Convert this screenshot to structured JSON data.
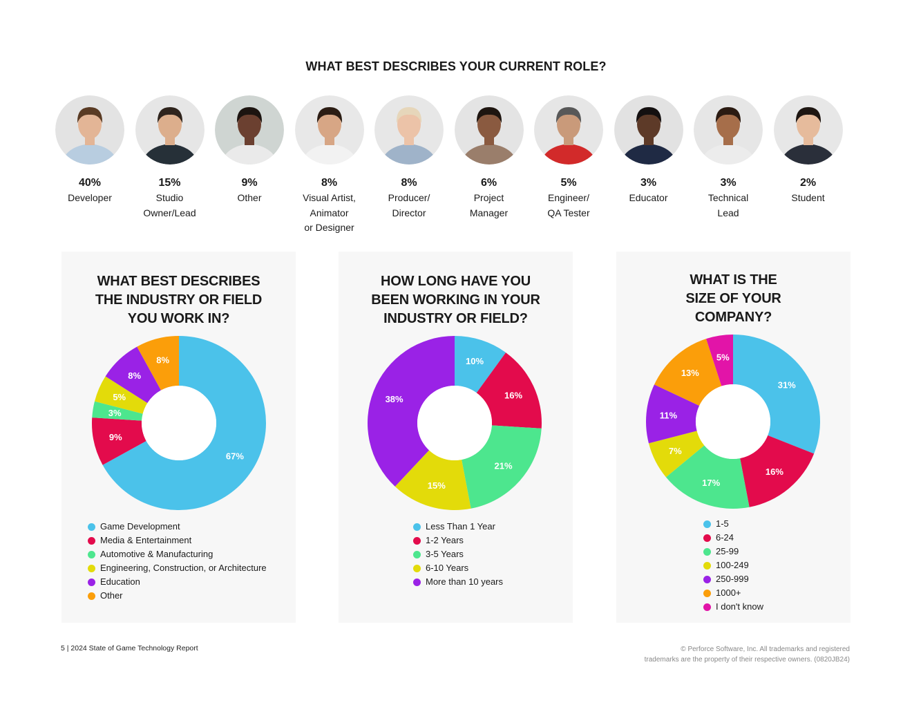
{
  "roles_section": {
    "title": "WHAT BEST DESCRIBES YOUR CURRENT ROLE?",
    "roles": [
      {
        "pct": "40%",
        "label": "Developer",
        "bg": "#e3e3e3",
        "skin": "#e3b596",
        "hair": "#5a3b24",
        "shirt": "#b8cde0"
      },
      {
        "pct": "15%",
        "label": "Studio\nOwner/Lead",
        "bg": "#e6e6e6",
        "skin": "#dcae8c",
        "hair": "#2f241d",
        "shirt": "#263038"
      },
      {
        "pct": "9%",
        "label": "Other",
        "bg": "#cfd5d2",
        "skin": "#6b4030",
        "hair": "#1c1410",
        "shirt": "#eaeaea"
      },
      {
        "pct": "8%",
        "label": "Visual Artist,\nAnimator\nor Designer",
        "bg": "#e8e8e8",
        "skin": "#d7a685",
        "hair": "#2c1d14",
        "shirt": "#f2f2f2"
      },
      {
        "pct": "8%",
        "label": "Producer/\nDirector",
        "bg": "#e7e7e7",
        "skin": "#ecc3a8",
        "hair": "#e6d6ba",
        "shirt": "#9fb3c9"
      },
      {
        "pct": "6%",
        "label": "Project\nManager",
        "bg": "#e4e4e4",
        "skin": "#8a5a40",
        "hair": "#1e1510",
        "shirt": "#9a7e6b"
      },
      {
        "pct": "5%",
        "label": "Engineer/\nQA Tester",
        "bg": "#e6e6e6",
        "skin": "#c99a7a",
        "hair": "#585858",
        "shirt": "#d22a2a"
      },
      {
        "pct": "3%",
        "label": "Educator",
        "bg": "#e2e2e2",
        "skin": "#5d3a28",
        "hair": "#141010",
        "shirt": "#1f2a44"
      },
      {
        "pct": "3%",
        "label": "Technical\nLead",
        "bg": "#e6e6e6",
        "skin": "#a66e4a",
        "hair": "#2b1b12",
        "shirt": "#ececec"
      },
      {
        "pct": "2%",
        "label": "Student",
        "bg": "#e7e7e7",
        "skin": "#e6bb9c",
        "hair": "#1e1612",
        "shirt": "#2a2f3a"
      }
    ]
  },
  "chart_data": [
    {
      "type": "pie",
      "title": "WHAT BEST DESCRIBES\nTHE INDUSTRY OR FIELD\nYOU WORK IN?",
      "categories": [
        "Game Development",
        "Media & Entertainment",
        "Automotive & Manufacturing",
        "Engineering, Construction, or Architecture",
        "Education",
        "Other"
      ],
      "values": [
        67,
        9,
        3,
        5,
        8,
        8
      ],
      "labels": [
        "67%",
        "9%",
        "3%",
        "5%",
        "8%",
        "8%"
      ],
      "colors": [
        "#4bc2ea",
        "#e30b4c",
        "#4de68e",
        "#e3db0a",
        "#9a22e6",
        "#fb9e0a"
      ],
      "legend_placement": "bottom"
    },
    {
      "type": "pie",
      "title": "HOW LONG HAVE YOU\nBEEN WORKING IN YOUR\nINDUSTRY OR FIELD?",
      "categories": [
        "Less Than 1 Year",
        "1-2 Years",
        "3-5 Years",
        "6-10 Years",
        "More than 10 years"
      ],
      "values": [
        10,
        16,
        21,
        15,
        38
      ],
      "labels": [
        "10%",
        "16%",
        "21%",
        "15%",
        "38%"
      ],
      "colors": [
        "#4bc2ea",
        "#e30b4c",
        "#4de68e",
        "#e3db0a",
        "#9a22e6"
      ],
      "legend_placement": "bottom"
    },
    {
      "type": "pie",
      "title": "WHAT IS THE\nSIZE OF YOUR\nCOMPANY?",
      "categories": [
        "1-5",
        "6-24",
        "25-99",
        "100-249",
        "250-999",
        "1000+",
        "I don't know"
      ],
      "values": [
        31,
        16,
        17,
        7,
        11,
        13,
        5
      ],
      "labels": [
        "31%",
        "16%",
        "17%",
        "7%",
        "11%",
        "13%",
        "5%"
      ],
      "colors": [
        "#4bc2ea",
        "#e30b4c",
        "#4de68e",
        "#e3db0a",
        "#9a22e6",
        "#fb9e0a",
        "#e214a8"
      ],
      "legend_placement": "bottom"
    }
  ],
  "footer": {
    "left": "5  |  2024 State of Game Technology Report",
    "right": "© Perforce Software, Inc. All trademarks and registered\ntrademarks are the property of their respective owners. (0820JB24)"
  }
}
